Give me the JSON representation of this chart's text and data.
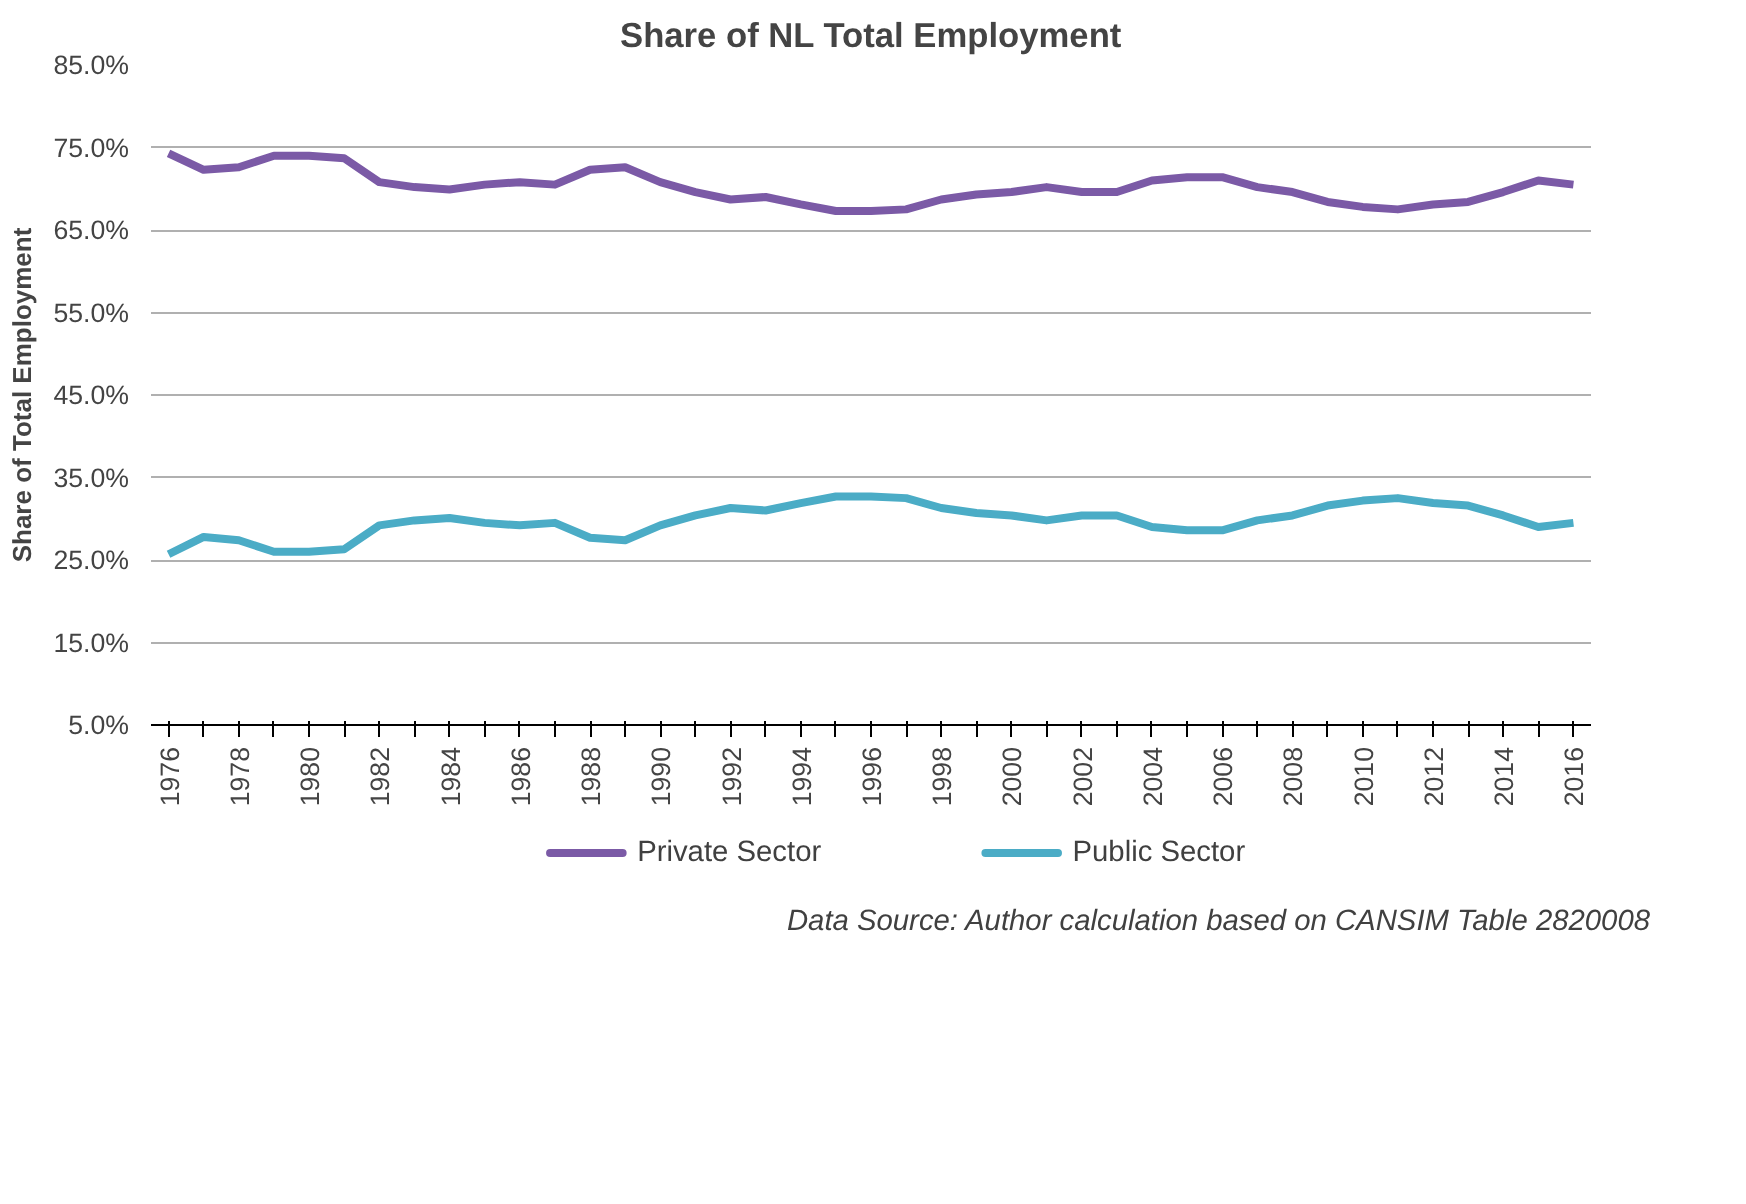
{
  "chart_data": {
    "type": "line",
    "title": "Share of NL Total Employment",
    "ylabel": "Share of Total Employment",
    "categories": [
      "1976",
      null,
      "1978",
      null,
      "1980",
      null,
      "1982",
      null,
      "1984",
      null,
      "1986",
      null,
      "1988",
      null,
      "1990",
      null,
      "1992",
      null,
      "1994",
      null,
      "1996",
      null,
      "1998",
      null,
      "2000",
      null,
      "2002",
      null,
      "2004",
      null,
      "2006",
      null,
      "2008",
      null,
      "2010",
      null,
      "2012",
      null,
      "2014",
      null,
      "2016"
    ],
    "series": [
      {
        "name": "Private Sector",
        "color": "#7b5aa6",
        "values": [
          74.3,
          72.3,
          72.6,
          74.0,
          74.0,
          73.7,
          70.8,
          70.2,
          69.9,
          70.5,
          70.8,
          70.5,
          72.3,
          72.6,
          70.8,
          69.6,
          68.7,
          69.0,
          68.1,
          67.3,
          67.3,
          67.5,
          68.7,
          69.3,
          69.6,
          70.2,
          69.6,
          69.6,
          71.0,
          71.4,
          71.4,
          70.2,
          69.6,
          68.4,
          67.8,
          67.5,
          68.1,
          68.4,
          69.6,
          71.0,
          70.5
        ]
      },
      {
        "name": "Public Sector",
        "color": "#4bacc6",
        "values": [
          25.7,
          27.8,
          27.4,
          26.0,
          26.0,
          26.3,
          29.2,
          29.8,
          30.1,
          29.5,
          29.2,
          29.5,
          27.7,
          27.4,
          29.2,
          30.4,
          31.3,
          31.0,
          31.9,
          32.7,
          32.7,
          32.5,
          31.3,
          30.7,
          30.4,
          29.8,
          30.4,
          30.4,
          29.0,
          28.6,
          28.6,
          29.8,
          30.4,
          31.6,
          32.2,
          32.5,
          31.9,
          31.6,
          30.4,
          29.0,
          29.5
        ]
      }
    ],
    "ylim": [
      5,
      85
    ],
    "yticks": [
      {
        "value": 5,
        "label": "5.0%"
      },
      {
        "value": 15,
        "label": "15.0%"
      },
      {
        "value": 25,
        "label": "25.0%"
      },
      {
        "value": 35,
        "label": "35.0%"
      },
      {
        "value": 45,
        "label": "45.0%"
      },
      {
        "value": 55,
        "label": "55.0%"
      },
      {
        "value": 65,
        "label": "65.0%"
      },
      {
        "value": 75,
        "label": "75.0%"
      },
      {
        "value": 85,
        "label": "85.0%"
      }
    ],
    "grid": "y",
    "legend": "bottom",
    "line_style": "solid",
    "annotations": [
      "Data Source: Author calculation based on CANSIM Table 2820008"
    ]
  }
}
